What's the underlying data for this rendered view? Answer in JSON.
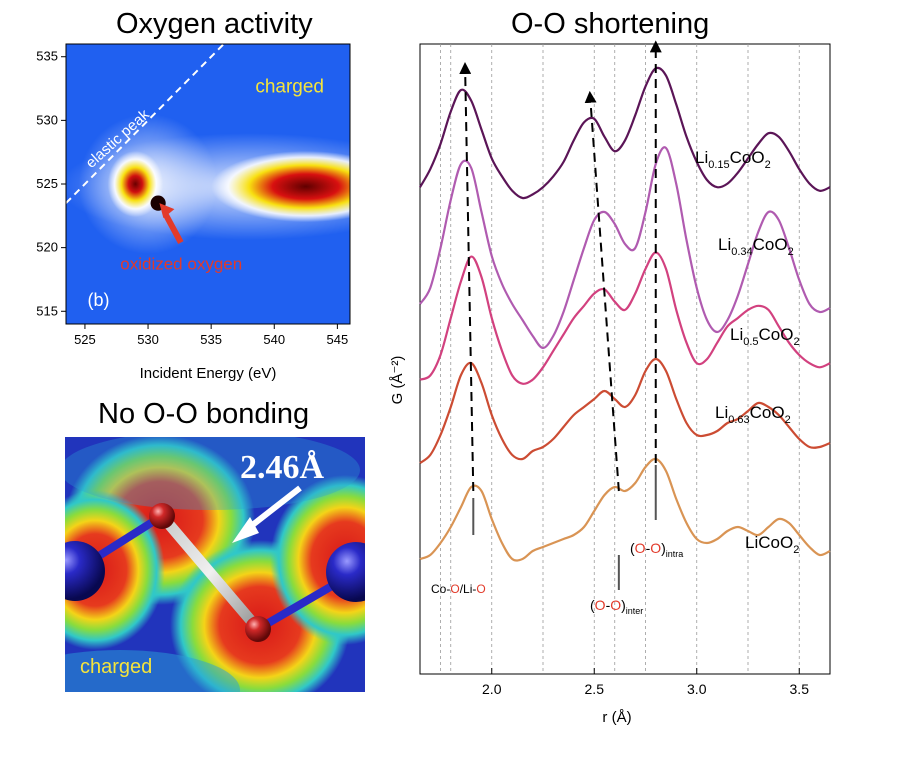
{
  "titles": {
    "left_top": "Oxygen activity",
    "left_bottom": "No O-O bonding",
    "right": "O-O shortening"
  },
  "chart_data": [
    {
      "type": "heatmap",
      "xlabel": "Incident Energy (eV)",
      "ylabel": "",
      "xlim": [
        523.5,
        546
      ],
      "ylim": [
        514,
        536
      ],
      "xticks": [
        525,
        530,
        535,
        540,
        545
      ],
      "yticks": [
        515,
        520,
        525,
        530,
        535
      ],
      "annotations": {
        "elastic": "elastic peak",
        "state": "charged",
        "arrow": "oxidized oxygen",
        "panel": "(b)"
      },
      "hotspots": [
        {
          "x": 529.0,
          "y": 525.0,
          "level": "high"
        },
        {
          "x": 530.8,
          "y": 523.5,
          "level": "max"
        },
        {
          "x": 542.5,
          "y": 524.8,
          "level": "high"
        }
      ],
      "elastic_line": [
        [
          523.5,
          523.5
        ],
        [
          536.0,
          536.0
        ]
      ]
    },
    {
      "type": "line",
      "xlabel": "r (Å)",
      "ylabel": "G (Å⁻²)",
      "xlim": [
        1.65,
        3.65
      ],
      "xticks": [
        2.0,
        2.5,
        3.0,
        3.5
      ],
      "x": [
        1.65,
        1.7,
        1.75,
        1.8,
        1.85,
        1.9,
        1.95,
        2.0,
        2.05,
        2.1,
        2.15,
        2.2,
        2.25,
        2.3,
        2.35,
        2.4,
        2.45,
        2.5,
        2.55,
        2.6,
        2.65,
        2.7,
        2.75,
        2.8,
        2.85,
        2.9,
        2.95,
        3.0,
        3.05,
        3.1,
        3.15,
        3.2,
        3.25,
        3.3,
        3.35,
        3.4,
        3.45,
        3.5,
        3.55,
        3.6,
        3.65
      ],
      "series": [
        {
          "name": "Li0.15CoO2",
          "color": "#5b1557",
          "values": [
            -0.1,
            0.15,
            0.5,
            0.95,
            1.25,
            1.1,
            0.7,
            0.3,
            0.05,
            -0.15,
            -0.25,
            -0.2,
            -0.1,
            0.05,
            0.25,
            0.55,
            0.8,
            0.85,
            0.6,
            0.4,
            0.55,
            0.9,
            1.3,
            1.55,
            1.45,
            1.05,
            0.6,
            0.25,
            0.0,
            -0.1,
            -0.05,
            0.1,
            0.3,
            0.5,
            0.65,
            0.6,
            0.4,
            0.15,
            -0.05,
            -0.15,
            -0.1
          ]
        },
        {
          "name": "Li0.34CoO2",
          "color": "#b05bb0",
          "values": [
            -0.3,
            -0.1,
            0.4,
            1.0,
            1.45,
            1.4,
            0.85,
            0.3,
            -0.05,
            -0.3,
            -0.5,
            -0.7,
            -0.85,
            -0.7,
            -0.4,
            0.0,
            0.4,
            0.75,
            0.85,
            0.7,
            0.45,
            0.4,
            0.85,
            1.45,
            1.65,
            1.2,
            0.5,
            -0.1,
            -0.5,
            -0.65,
            -0.5,
            -0.2,
            0.2,
            0.6,
            0.85,
            0.75,
            0.4,
            0.0,
            -0.3,
            -0.4,
            -0.35
          ]
        },
        {
          "name": "Li0.5CoO2",
          "color": "#d2417f",
          "values": [
            -0.3,
            -0.25,
            0.0,
            0.45,
            0.9,
            1.2,
            0.95,
            0.45,
            0.05,
            -0.25,
            -0.35,
            -0.3,
            -0.15,
            0.05,
            0.25,
            0.45,
            0.6,
            0.75,
            0.8,
            0.65,
            0.55,
            0.75,
            1.05,
            1.25,
            1.05,
            0.55,
            0.15,
            -0.1,
            -0.05,
            0.15,
            0.35,
            0.45,
            0.55,
            0.6,
            0.55,
            0.35,
            0.15,
            0.0,
            -0.1,
            -0.15,
            -0.1
          ]
        },
        {
          "name": "Li0.63CoO2",
          "color": "#cc4c33",
          "values": [
            -0.35,
            -0.25,
            0.0,
            0.35,
            0.75,
            0.9,
            0.65,
            0.25,
            -0.05,
            -0.25,
            -0.3,
            -0.2,
            -0.15,
            -0.05,
            0.1,
            0.25,
            0.35,
            0.45,
            0.55,
            0.45,
            0.35,
            0.5,
            0.8,
            0.95,
            0.8,
            0.45,
            0.15,
            0.0,
            0.0,
            0.05,
            0.15,
            0.2,
            0.3,
            0.4,
            0.35,
            0.25,
            0.1,
            -0.05,
            -0.15,
            -0.15,
            -0.1
          ]
        },
        {
          "name": "LiCoO2",
          "color": "#d99454",
          "values": [
            -0.3,
            -0.25,
            -0.1,
            0.1,
            0.35,
            0.6,
            0.55,
            0.2,
            -0.1,
            -0.3,
            -0.3,
            -0.2,
            -0.15,
            -0.1,
            -0.05,
            0.0,
            0.1,
            0.3,
            0.5,
            0.6,
            0.55,
            0.65,
            0.85,
            0.95,
            0.8,
            0.45,
            0.15,
            -0.05,
            -0.1,
            -0.05,
            0.05,
            0.1,
            0.05,
            0.0,
            0.1,
            0.2,
            0.15,
            0.0,
            -0.15,
            -0.25,
            -0.2
          ]
        }
      ],
      "series_labels": [
        {
          "base": "Li",
          "sub": "0.15",
          "mid": "CoO",
          "sub2": "2"
        },
        {
          "base": "Li",
          "sub": "0.34",
          "mid": "CoO",
          "sub2": "2"
        },
        {
          "base": "Li",
          "sub": "0.5",
          "mid": "CoO",
          "sub2": "2"
        },
        {
          "base": "Li",
          "sub": "0.63",
          "mid": "CoO",
          "sub2": "2"
        },
        {
          "base": "LiCoO",
          "sub": "",
          "mid": "",
          "sub2": "2"
        }
      ],
      "peak_annotations": {
        "co_o": {
          "pre": "Co-",
          "o1": "O",
          "mid": "/Li-",
          "o2": "O"
        },
        "inter": {
          "open": "(",
          "o1": "O",
          "dash": "-",
          "o2": "O",
          "close": ")",
          "sub": "inter"
        },
        "intra": {
          "open": "(",
          "o1": "O",
          "dash": "-",
          "o2": "O",
          "close": ")",
          "sub": "intra"
        }
      },
      "vertical_gridlines": [
        1.75,
        1.8,
        2.0,
        2.25,
        2.5,
        2.6,
        2.75,
        3.0,
        3.25,
        3.5
      ],
      "trend_lines": [
        {
          "from": [
            1.91,
            "LiCoO2"
          ],
          "to": [
            1.87,
            "Li0.15CoO2"
          ]
        },
        {
          "from": [
            2.62,
            "LiCoO2"
          ],
          "to": [
            2.48,
            "Li0.15CoO2"
          ]
        },
        {
          "from": [
            2.8,
            "LiCoO2"
          ],
          "to": [
            2.8,
            "Li0.15CoO2"
          ]
        }
      ]
    }
  ],
  "structure_image": {
    "length_label": "2.46Å",
    "state_label": "charged"
  },
  "colors": {
    "heat_bg": "#2060f0",
    "annot_yellow": "#f4e43c",
    "annot_red": "#e23a2a",
    "o_red": "#e23a2a",
    "atom_blue": "#1a1aa0",
    "atom_red": "#d02828"
  }
}
